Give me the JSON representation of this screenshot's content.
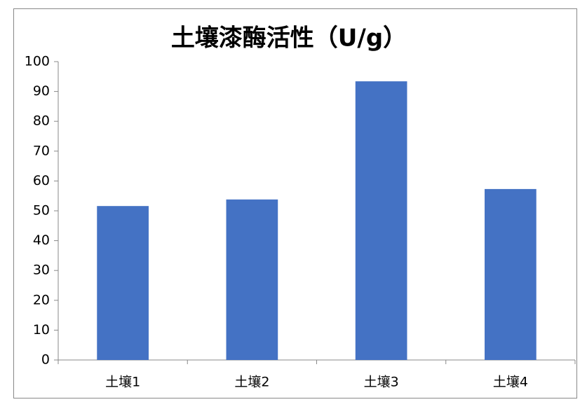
{
  "chart_data": {
    "type": "bar",
    "title": "土壤漆酶活性（U/g）",
    "categories": [
      "土壤1",
      "土壤2",
      "土壤3",
      "土壤4"
    ],
    "values": [
      51.6,
      53.8,
      93.4,
      57.3
    ],
    "color": "#4472c4",
    "ylim": [
      0,
      100
    ],
    "yticks": [
      0,
      10,
      20,
      30,
      40,
      50,
      60,
      70,
      80,
      90,
      100
    ],
    "grid": false
  }
}
